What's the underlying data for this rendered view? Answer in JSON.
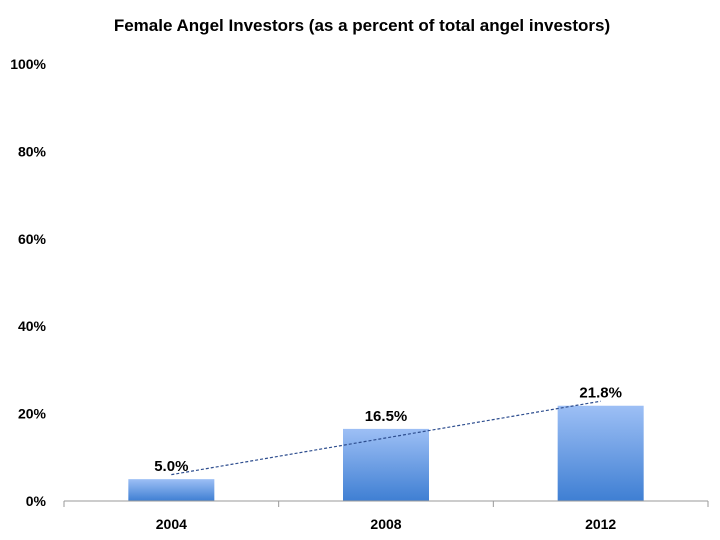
{
  "chart_data": {
    "type": "bar",
    "title": "Female Angel Investors (as a percent of total angel investors)",
    "xlabel": "",
    "ylabel": "",
    "categories": [
      "2004",
      "2008",
      "2012"
    ],
    "values": [
      5.0,
      16.5,
      21.8
    ],
    "data_labels": [
      "5.0%",
      "16.5%",
      "21.8%"
    ],
    "y_ticks": [
      0,
      20,
      40,
      60,
      80,
      100
    ],
    "y_tick_labels": [
      "0%",
      "20%",
      "40%",
      "60%",
      "80%",
      "100%"
    ],
    "ylim": [
      0,
      100
    ],
    "grid": false,
    "trendline": {
      "type": "linear",
      "style": "dashed"
    },
    "colors": {
      "bar_top": "#9dbff5",
      "bar_bottom": "#3f7fd3",
      "trendline": "#2e4e8f",
      "axis": "#9a9a9a"
    }
  }
}
